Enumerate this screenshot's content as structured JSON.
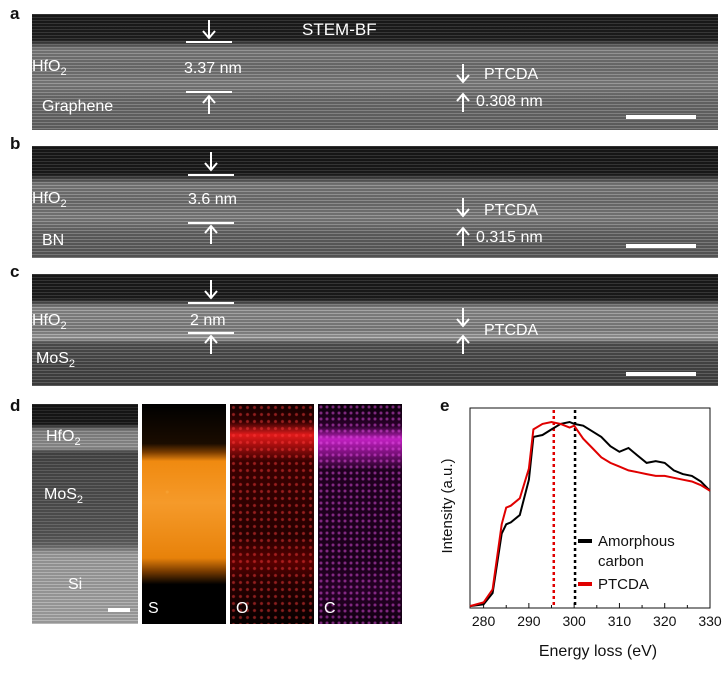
{
  "panels": {
    "a": {
      "label": "a",
      "title": "STEM-BF",
      "layer_top": "HfO",
      "layer_top_sub": "2",
      "layer_bottom": "Graphene",
      "thickness": "3.37 nm",
      "molecule": "PTCDA",
      "spacing": "0.308 nm"
    },
    "b": {
      "label": "b",
      "layer_top": "HfO",
      "layer_top_sub": "2",
      "layer_bottom": "BN",
      "thickness": "3.6 nm",
      "molecule": "PTCDA",
      "spacing": "0.315 nm"
    },
    "c": {
      "label": "c",
      "layer_top": "HfO",
      "layer_top_sub": "2",
      "layer_bottom": "MoS",
      "layer_bottom_sub": "2",
      "thickness": "2 nm",
      "molecule": "PTCDA"
    },
    "d": {
      "label": "d",
      "layers": {
        "hfo2": "HfO",
        "hfo2_sub": "2",
        "mos2": "MoS",
        "mos2_sub": "2",
        "si": "Si"
      },
      "maps": [
        {
          "element": "S",
          "color": "#f28a00"
        },
        {
          "element": "O",
          "color": "#e01010"
        },
        {
          "element": "C",
          "color": "#cc22cc"
        }
      ]
    },
    "e": {
      "label": "e"
    }
  },
  "chart_data": {
    "type": "line",
    "xlabel": "Energy loss (eV)",
    "ylabel": "Intensity (a.u.)",
    "xlim": [
      277,
      330
    ],
    "ylim": [
      0,
      1
    ],
    "xticks": [
      280,
      290,
      300,
      310,
      320,
      330
    ],
    "series": [
      {
        "name": "Amorphous carbon",
        "color": "#000000",
        "x": [
          277,
          280,
          282,
          284,
          285,
          286,
          288,
          290,
          291,
          293,
          295,
          297,
          299,
          300,
          302,
          304,
          306,
          308,
          310,
          312,
          314,
          316,
          318,
          320,
          322,
          324,
          326,
          328,
          330
        ],
        "y": [
          0.01,
          0.02,
          0.08,
          0.4,
          0.45,
          0.46,
          0.5,
          0.69,
          0.92,
          0.93,
          0.96,
          0.99,
          1.0,
          0.99,
          0.98,
          0.95,
          0.92,
          0.87,
          0.84,
          0.86,
          0.82,
          0.78,
          0.79,
          0.78,
          0.74,
          0.72,
          0.71,
          0.68,
          0.63
        ]
      },
      {
        "name": "PTCDA",
        "color": "#e00000",
        "x": [
          277,
          280,
          282,
          284,
          285,
          286,
          288,
          290,
          291,
          293,
          295,
          297,
          299,
          300,
          302,
          304,
          306,
          308,
          310,
          312,
          314,
          316,
          318,
          320,
          322,
          324,
          326,
          328,
          330
        ],
        "y": [
          0.01,
          0.03,
          0.1,
          0.45,
          0.54,
          0.55,
          0.59,
          0.75,
          0.96,
          0.99,
          1.0,
          0.99,
          0.97,
          0.98,
          0.91,
          0.86,
          0.81,
          0.78,
          0.76,
          0.74,
          0.73,
          0.72,
          0.71,
          0.71,
          0.7,
          0.69,
          0.68,
          0.66,
          0.63
        ]
      }
    ],
    "vlines": [
      {
        "x": 295.5,
        "color": "#e00000"
      },
      {
        "x": 300.2,
        "color": "#000000"
      }
    ],
    "legend_position": "right"
  }
}
